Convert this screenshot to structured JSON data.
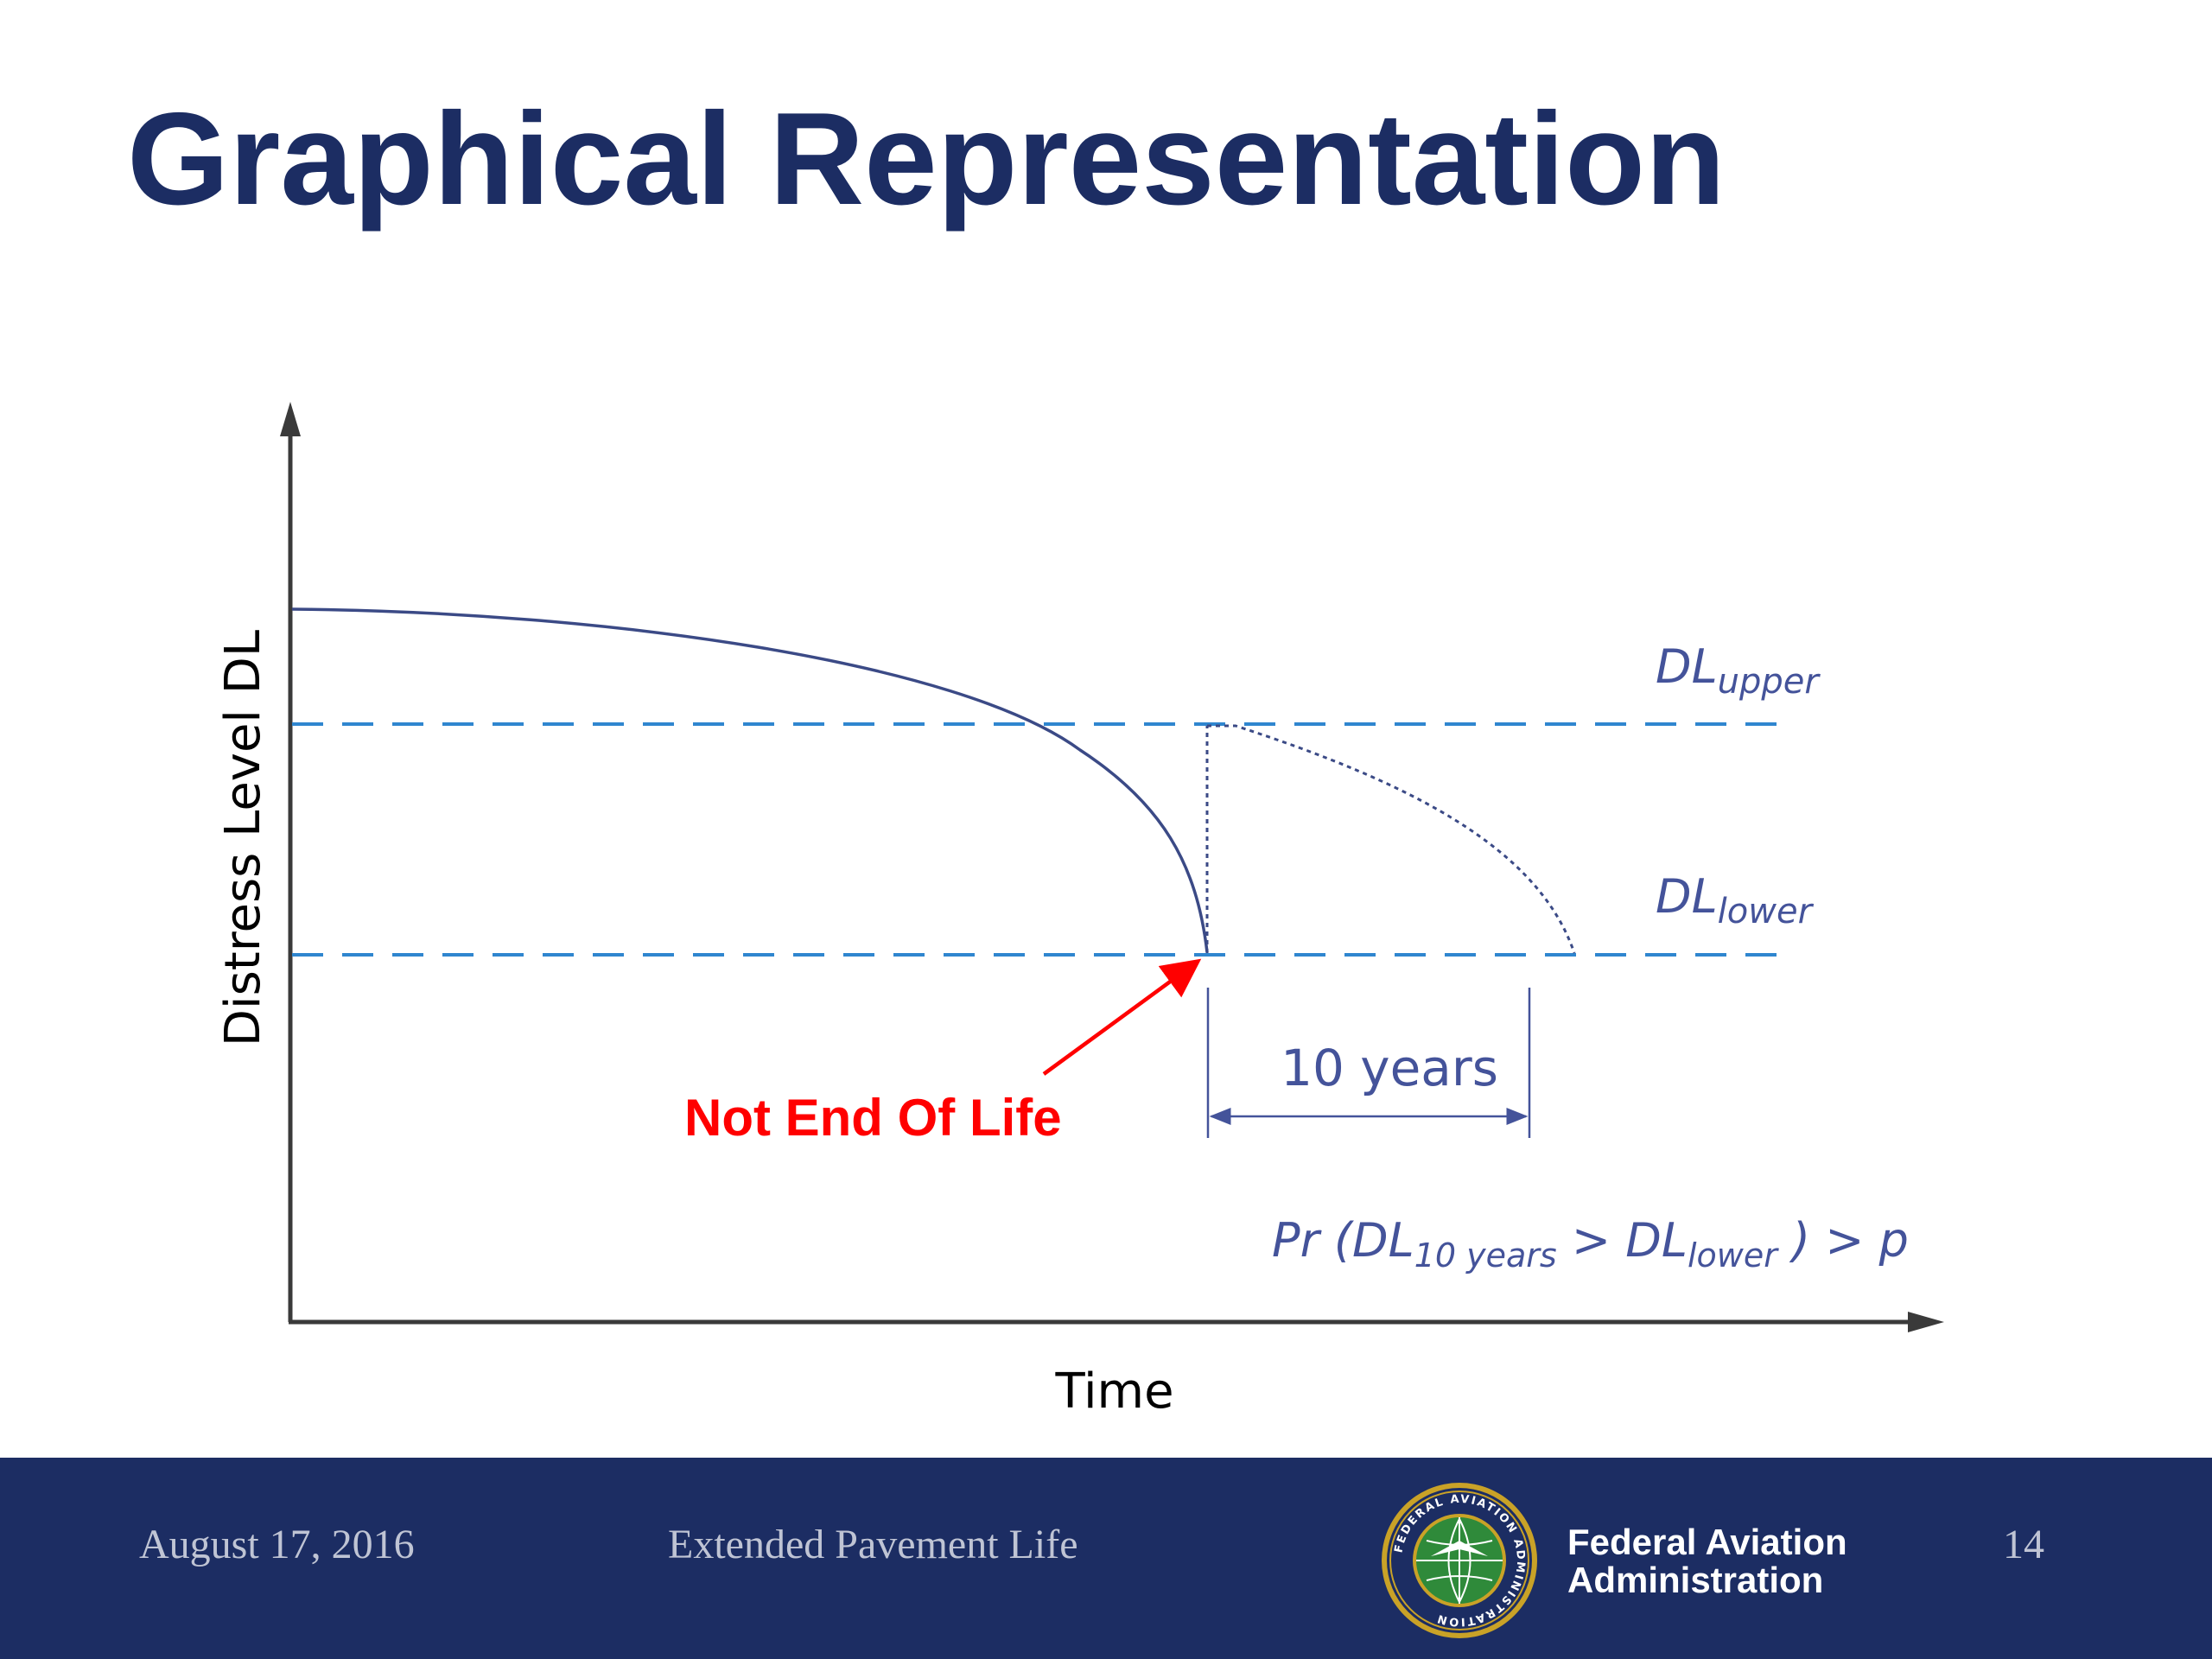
{
  "slide": {
    "title": "Graphical Representation"
  },
  "diagram": {
    "y_axis_label": "Distress Level DL",
    "x_axis_label": "Time",
    "upper_label_main": "DL",
    "upper_label_sub": "upper",
    "lower_label_main": "DL",
    "lower_label_sub": "lower",
    "callout_text": "Not End Of Life",
    "interval_label": "10 years",
    "formula": {
      "part1": "Pr (DL",
      "sub1": "10 years",
      "part2": " > DL",
      "sub2": "lower",
      "part3": " ) > p"
    },
    "colors": {
      "axis": "#3a3a3a",
      "curve": "#3b4a86",
      "threshold": "#2f86cf",
      "callout": "#ff0000",
      "label": "#44539a"
    }
  },
  "footer": {
    "date": "August 17, 2016",
    "center": "Extended Pavement Life",
    "org_line1": "Federal Aviation",
    "org_line2": "Administration",
    "page_number": "14",
    "seal_text": "FEDERAL AVIATION ADMINISTRATION"
  }
}
